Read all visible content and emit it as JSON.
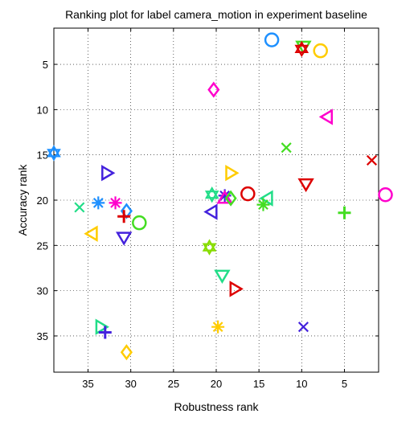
{
  "chart_data": {
    "type": "scatter",
    "title": "Ranking plot for label camera_motion in experiment baseline",
    "xlabel": "Robustness rank",
    "ylabel": "Accuracy rank",
    "xlim": [
      1,
      39
    ],
    "ylim": [
      1,
      39
    ],
    "x_reversed": true,
    "y_reversed": true,
    "xticks": [
      "35",
      "30",
      "25",
      "20",
      "15",
      "10",
      "5"
    ],
    "yticks": [
      "5",
      "10",
      "15",
      "20",
      "25",
      "30",
      "35"
    ],
    "grid": true,
    "legend": "none",
    "points": [
      {
        "x": 13.5,
        "y": 2.3,
        "marker": "circle",
        "color": "#1e90ff"
      },
      {
        "x": 9.8,
        "y": 3.0,
        "marker": "triangle-down",
        "color": "#44dd22"
      },
      {
        "x": 10.0,
        "y": 3.3,
        "marker": "hexagram",
        "color": "#dd0000"
      },
      {
        "x": 7.8,
        "y": 3.5,
        "marker": "circle",
        "color": "#ffcc00"
      },
      {
        "x": 20.3,
        "y": 7.8,
        "marker": "diamond",
        "color": "#ff00cc"
      },
      {
        "x": 7.0,
        "y": 10.8,
        "marker": "triangle-left",
        "color": "#ff00cc"
      },
      {
        "x": 11.8,
        "y": 14.2,
        "marker": "x",
        "color": "#44dd22"
      },
      {
        "x": 39.0,
        "y": 14.8,
        "marker": "hexagram",
        "color": "#1e90ff"
      },
      {
        "x": 1.8,
        "y": 15.6,
        "marker": "x",
        "color": "#dd0000"
      },
      {
        "x": 32.8,
        "y": 17.0,
        "marker": "triangle-right",
        "color": "#4422dd"
      },
      {
        "x": 18.3,
        "y": 17.0,
        "marker": "triangle-right",
        "color": "#ffcc00"
      },
      {
        "x": 9.5,
        "y": 18.2,
        "marker": "triangle-down",
        "color": "#dd0000"
      },
      {
        "x": 16.3,
        "y": 19.3,
        "marker": "circle",
        "color": "#dd0000"
      },
      {
        "x": 20.5,
        "y": 19.4,
        "marker": "hexagram",
        "color": "#22dd88"
      },
      {
        "x": 0.2,
        "y": 19.4,
        "marker": "circle",
        "color": "#ff00cc"
      },
      {
        "x": 19.0,
        "y": 19.5,
        "marker": "asterisk",
        "color": "#4422dd"
      },
      {
        "x": 19.0,
        "y": 19.8,
        "marker": "triangle-up",
        "color": "#ff00cc"
      },
      {
        "x": 18.3,
        "y": 19.8,
        "marker": "diamond",
        "color": "#44dd22"
      },
      {
        "x": 14.0,
        "y": 19.8,
        "marker": "triangle-left",
        "color": "#22dd88"
      },
      {
        "x": 33.8,
        "y": 20.3,
        "marker": "asterisk",
        "color": "#1e90ff"
      },
      {
        "x": 31.8,
        "y": 20.3,
        "marker": "asterisk",
        "color": "#ff00cc"
      },
      {
        "x": 14.5,
        "y": 20.5,
        "marker": "asterisk",
        "color": "#44dd22"
      },
      {
        "x": 36.0,
        "y": 20.8,
        "marker": "x",
        "color": "#22dd88"
      },
      {
        "x": 30.5,
        "y": 21.2,
        "marker": "diamond",
        "color": "#1e90ff"
      },
      {
        "x": 20.5,
        "y": 21.3,
        "marker": "triangle-left",
        "color": "#4422dd"
      },
      {
        "x": 5.0,
        "y": 21.4,
        "marker": "plus",
        "color": "#44dd22"
      },
      {
        "x": 30.8,
        "y": 21.8,
        "marker": "plus",
        "color": "#dd0000"
      },
      {
        "x": 29.0,
        "y": 22.5,
        "marker": "circle",
        "color": "#44dd22"
      },
      {
        "x": 34.5,
        "y": 23.7,
        "marker": "triangle-left",
        "color": "#ffcc00"
      },
      {
        "x": 30.8,
        "y": 24.1,
        "marker": "triangle-down",
        "color": "#4422dd"
      },
      {
        "x": 20.8,
        "y": 25.2,
        "marker": "hexagram",
        "color": "#88dd00"
      },
      {
        "x": 19.3,
        "y": 28.3,
        "marker": "triangle-down",
        "color": "#22dd88"
      },
      {
        "x": 17.8,
        "y": 29.8,
        "marker": "triangle-right",
        "color": "#dd0000"
      },
      {
        "x": 19.8,
        "y": 34.0,
        "marker": "asterisk",
        "color": "#ffcc00"
      },
      {
        "x": 9.8,
        "y": 34.0,
        "marker": "x",
        "color": "#4422dd"
      },
      {
        "x": 33.5,
        "y": 34.0,
        "marker": "triangle-right",
        "color": "#22dd88"
      },
      {
        "x": 33.0,
        "y": 34.6,
        "marker": "plus",
        "color": "#4422dd"
      },
      {
        "x": 30.5,
        "y": 36.8,
        "marker": "diamond",
        "color": "#ffcc00"
      }
    ]
  }
}
